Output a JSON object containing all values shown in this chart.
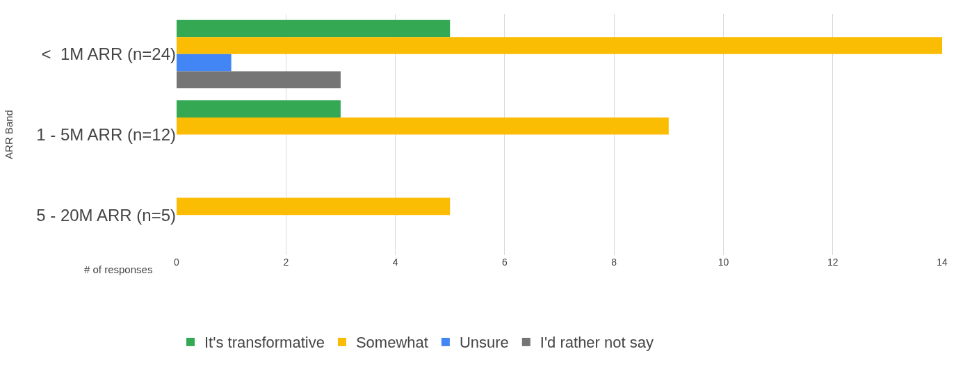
{
  "chart_data": {
    "type": "bar",
    "orientation": "horizontal",
    "categories": [
      "<  1M ARR (n=24)",
      "1 - 5M ARR (n=12)",
      "5 - 20M ARR (n=5)"
    ],
    "series": [
      {
        "name": "It's transformative",
        "color": "#34a853",
        "values": [
          5,
          3,
          0
        ]
      },
      {
        "name": "Somewhat",
        "color": "#fbbc04",
        "values": [
          14,
          9,
          5
        ]
      },
      {
        "name": "Unsure",
        "color": "#4285f4",
        "values": [
          1,
          0,
          0
        ]
      },
      {
        "name": "I'd rather not say",
        "color": "#757575",
        "values": [
          3,
          0,
          0
        ]
      }
    ],
    "xlabel": "# of responses",
    "ylabel": "ARR Band",
    "xlim": [
      0,
      14
    ],
    "xticks": [
      0,
      2,
      4,
      6,
      8,
      10,
      12,
      14
    ],
    "grid": "x",
    "legend": "bottom"
  }
}
